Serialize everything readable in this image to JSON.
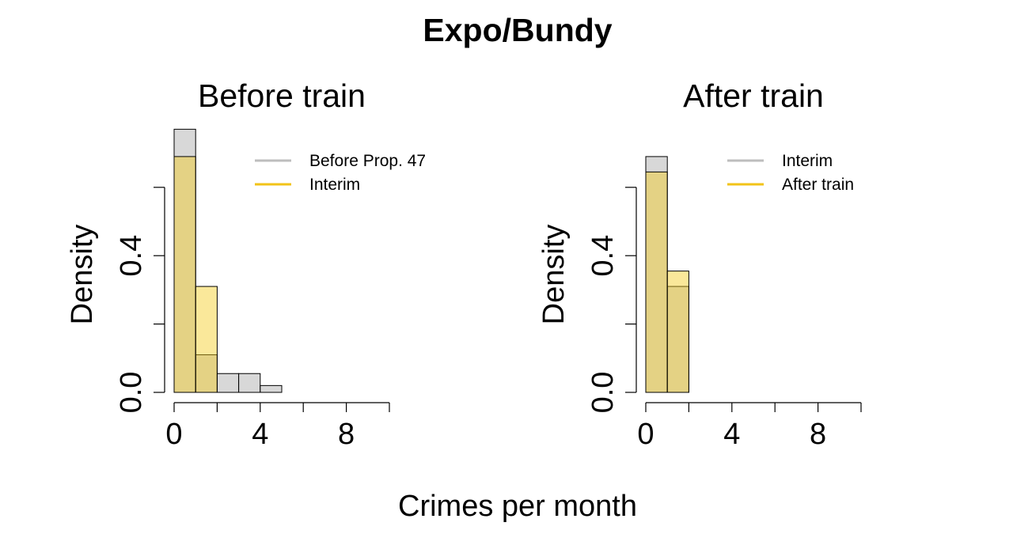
{
  "figure": {
    "title": "Expo/Bundy",
    "xlabel": "Crimes per month"
  },
  "chart_data": [
    {
      "type": "bar",
      "subtype": "overlapping-histogram",
      "title": "Before train",
      "ylabel": "Density",
      "xlim": [
        0,
        10
      ],
      "ylim": [
        0,
        0.75
      ],
      "x_ticks": [
        0,
        2,
        4,
        6,
        8,
        10
      ],
      "x_tick_labels": [
        "0",
        "",
        "4",
        "",
        "8",
        ""
      ],
      "y_ticks": [
        0,
        0.2,
        0.4,
        0.6
      ],
      "y_tick_labels": [
        "0.0",
        "",
        "0.4",
        ""
      ],
      "bin_width": 1,
      "legend_position": "top-right",
      "series": [
        {
          "name": "Before Prop. 47",
          "color": "#bdbdbd",
          "fill": "rgba(190,190,190,0.6)",
          "bin_starts": [
            0,
            1,
            2,
            3,
            4,
            5
          ],
          "values": [
            0.77,
            0.11,
            0.055,
            0.055,
            0.02,
            0.0
          ]
        },
        {
          "name": "Interim",
          "color": "#f2c318",
          "fill": "rgba(245,205,30,0.45)",
          "bin_starts": [
            0,
            1
          ],
          "values": [
            0.69,
            0.31
          ]
        }
      ]
    },
    {
      "type": "bar",
      "subtype": "overlapping-histogram",
      "title": "After train",
      "ylabel": "Density",
      "xlim": [
        0,
        10
      ],
      "ylim": [
        0,
        0.75
      ],
      "x_ticks": [
        0,
        2,
        4,
        6,
        8,
        10
      ],
      "x_tick_labels": [
        "0",
        "",
        "4",
        "",
        "8",
        ""
      ],
      "y_ticks": [
        0,
        0.2,
        0.4,
        0.6
      ],
      "y_tick_labels": [
        "0.0",
        "",
        "0.4",
        ""
      ],
      "bin_width": 1,
      "legend_position": "top-right",
      "series": [
        {
          "name": "Interim",
          "color": "#bdbdbd",
          "fill": "rgba(190,190,190,0.6)",
          "bin_starts": [
            0,
            1,
            2
          ],
          "values": [
            0.69,
            0.31,
            0.0
          ]
        },
        {
          "name": "After train",
          "color": "#f2c318",
          "fill": "rgba(245,205,30,0.45)",
          "bin_starts": [
            0,
            1
          ],
          "values": [
            0.645,
            0.355
          ]
        }
      ]
    }
  ]
}
